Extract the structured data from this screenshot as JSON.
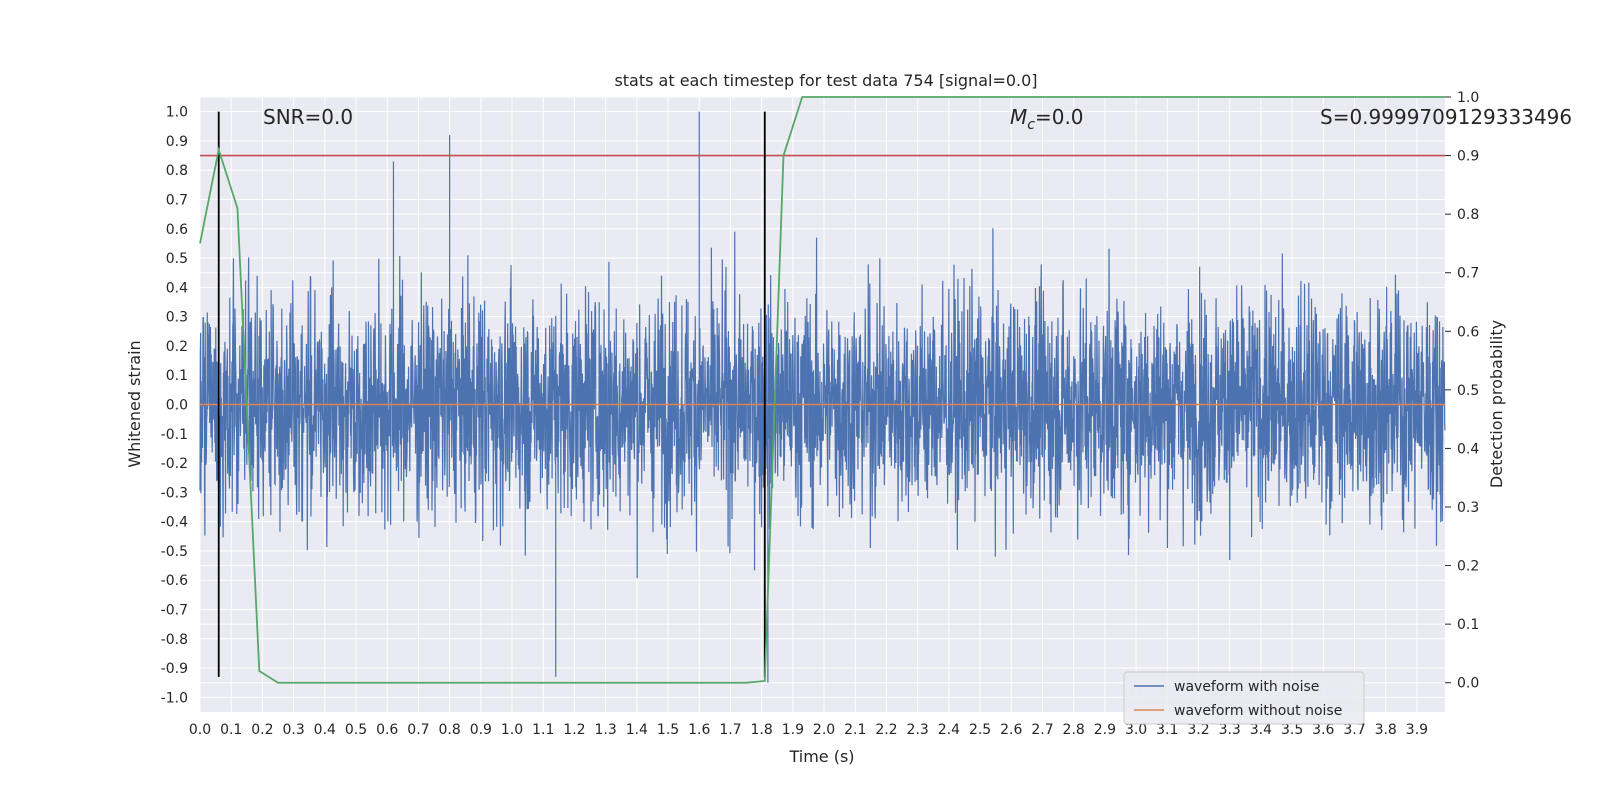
{
  "chart_data": {
    "type": "line",
    "title": "stats at each timestep for test data 754 [signal=0.0]",
    "xlabel": "Time (s)",
    "ylabel": "Whitened strain",
    "y2label": "Detection probability",
    "xlim": [
      0.0,
      3.99
    ],
    "ylim": [
      -1.05,
      1.05
    ],
    "y2lim": [
      -0.05,
      1.0
    ],
    "x_ticks": [
      "0.0",
      "0.1",
      "0.2",
      "0.3",
      "0.4",
      "0.5",
      "0.6",
      "0.7",
      "0.8",
      "0.9",
      "1.0",
      "1.1",
      "1.2",
      "1.3",
      "1.4",
      "1.5",
      "1.6",
      "1.7",
      "1.8",
      "1.9",
      "2.0",
      "2.1",
      "2.2",
      "2.3",
      "2.4",
      "2.5",
      "2.6",
      "2.7",
      "2.8",
      "2.9",
      "3.0",
      "3.1",
      "3.2",
      "3.3",
      "3.4",
      "3.5",
      "3.6",
      "3.7",
      "3.8",
      "3.9"
    ],
    "y_ticks": [
      "1.0",
      "0.9",
      "0.8",
      "0.7",
      "0.6",
      "0.5",
      "0.4",
      "0.3",
      "0.2",
      "0.1",
      "0.0",
      "-0.1",
      "-0.2",
      "-0.3",
      "-0.4",
      "-0.5",
      "-0.6",
      "-0.7",
      "-0.8",
      "-0.9",
      "-1.0"
    ],
    "y2_ticks": [
      "1.0",
      "0.9",
      "0.8",
      "0.7",
      "0.6",
      "0.5",
      "0.4",
      "0.3",
      "0.2",
      "0.1",
      "0.0"
    ],
    "grid": true,
    "series": [
      {
        "name": "waveform with noise",
        "color": "#4c72b0",
        "axis": "left",
        "kind": "noise",
        "x_range": [
          0.0,
          3.99
        ],
        "amplitude_std": 0.26,
        "peaks": [
          [
            1.6,
            1.0
          ],
          [
            0.8,
            0.92
          ],
          [
            0.62,
            0.83
          ],
          [
            1.14,
            -0.93
          ],
          [
            1.82,
            -0.95
          ]
        ]
      },
      {
        "name": "waveform without noise",
        "color": "#dd8452",
        "axis": "left",
        "x": [
          0.0,
          3.99
        ],
        "y": [
          0.0,
          0.0
        ]
      },
      {
        "color": "#55a868",
        "axis": "right",
        "x": [
          0.0,
          0.06,
          0.12,
          0.19,
          0.25,
          0.31,
          0.5,
          1.0,
          1.5,
          1.75,
          1.81,
          1.87,
          1.93,
          2.0,
          3.0,
          3.99
        ],
        "y": [
          0.75,
          0.91,
          0.81,
          0.02,
          0.0,
          0.0,
          0.0,
          0.0,
          0.0,
          0.0,
          0.003,
          0.9,
          1.0,
          1.0,
          1.0,
          1.0
        ]
      }
    ],
    "hlines": [
      {
        "axis": "right",
        "y": 0.9,
        "color": "#c44e52"
      }
    ],
    "vlines": [
      {
        "x": 0.06,
        "y_range": [
          -0.93,
          1.0
        ],
        "color": "#000000"
      },
      {
        "x": 1.81,
        "y_range": [
          -0.93,
          1.0
        ],
        "color": "#000000"
      }
    ],
    "annotations": {
      "snr": "SNR=0.0",
      "mc_symbol": "M",
      "mc_sub": "c",
      "mc_value": "=0.0",
      "s": "S=0.9999709129333496"
    },
    "legend": {
      "placement": "lower-right",
      "entries": [
        "waveform with noise",
        "waveform without noise"
      ]
    },
    "background": "#eaeaf2",
    "gridcolor": "#ffffff"
  }
}
